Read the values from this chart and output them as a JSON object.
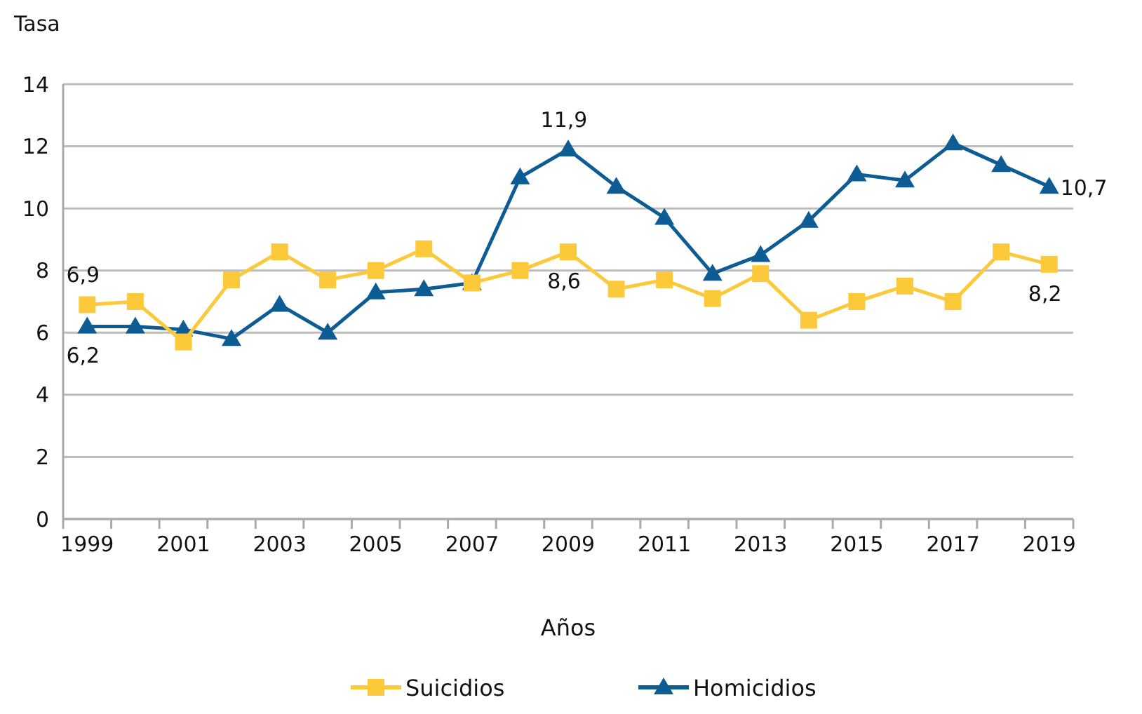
{
  "chart_data": {
    "type": "line",
    "ylabel": "Tasa",
    "xlabel": "Años",
    "categories": [
      "1999",
      null,
      "2001",
      null,
      "2003",
      null,
      "2005",
      null,
      "2007",
      null,
      "2009",
      null,
      "2011",
      null,
      "2013",
      null,
      "2015",
      null,
      "2017",
      null,
      "2019"
    ],
    "ylim": [
      0,
      14
    ],
    "yticks": [
      0,
      2,
      4,
      6,
      8,
      10,
      12,
      14
    ],
    "grid": "y",
    "legend": "bottom",
    "series": [
      {
        "name": "Suicidios",
        "color": "#fcc93a",
        "marker": "square",
        "values": [
          6.9,
          7.0,
          5.7,
          7.7,
          8.6,
          7.7,
          8.0,
          8.7,
          7.6,
          8.0,
          8.6,
          7.4,
          7.7,
          7.1,
          7.9,
          6.4,
          7.0,
          7.5,
          7.0,
          8.6,
          8.2
        ],
        "value_labels": [
          "6,9",
          null,
          null,
          null,
          null,
          null,
          null,
          null,
          null,
          null,
          "8,6",
          null,
          null,
          null,
          null,
          null,
          null,
          null,
          null,
          null,
          "8,2"
        ]
      },
      {
        "name": "Homicidios",
        "color": "#0d5c94",
        "marker": "triangle",
        "values": [
          6.2,
          6.2,
          6.1,
          5.8,
          6.9,
          6.0,
          7.3,
          7.4,
          7.6,
          11.0,
          11.9,
          10.7,
          9.7,
          7.9,
          8.5,
          9.6,
          11.1,
          10.9,
          12.1,
          11.4,
          10.7
        ],
        "value_labels": [
          "6,2",
          null,
          null,
          null,
          null,
          null,
          null,
          null,
          null,
          null,
          "11,9",
          null,
          null,
          null,
          null,
          null,
          null,
          null,
          null,
          null,
          "10,7"
        ]
      }
    ]
  }
}
